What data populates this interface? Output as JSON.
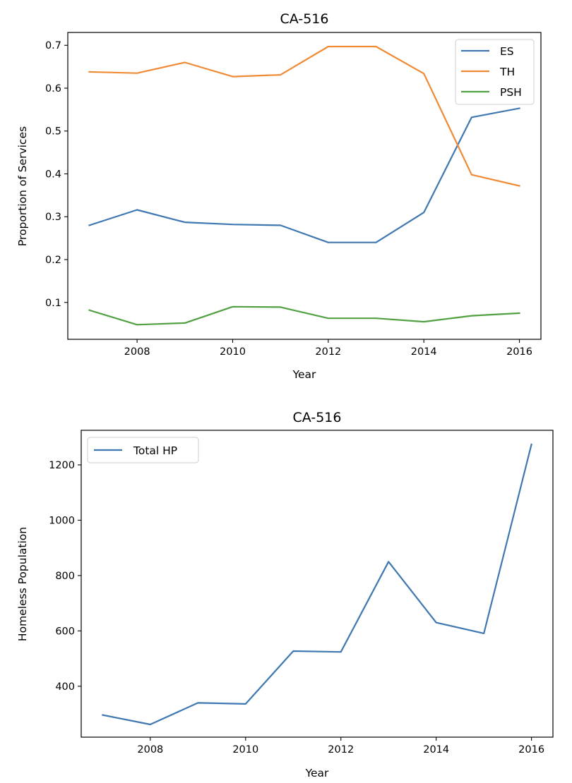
{
  "chart_data": [
    {
      "type": "line",
      "title": "CA-516",
      "xlabel": "Year",
      "ylabel": "Proportion of Services",
      "xlim": [
        2006.55,
        2016.45
      ],
      "ylim": [
        0.014,
        0.73
      ],
      "xticks": [
        2008,
        2010,
        2012,
        2014,
        2016
      ],
      "yticks": [
        0.1,
        0.2,
        0.3,
        0.4,
        0.5,
        0.6,
        0.7
      ],
      "ytick_labels": [
        "0.1",
        "0.2",
        "0.3",
        "0.4",
        "0.5",
        "0.6",
        "0.7"
      ],
      "legend_position": "top-right",
      "x": [
        2007,
        2008,
        2009,
        2010,
        2011,
        2012,
        2013,
        2014,
        2015,
        2016
      ],
      "series": [
        {
          "name": "ES",
          "color": "#3f78b0",
          "values": [
            0.28,
            0.316,
            0.287,
            0.282,
            0.28,
            0.24,
            0.24,
            0.31,
            0.532,
            0.553
          ]
        },
        {
          "name": "TH",
          "color": "#ef8a35",
          "values": [
            0.638,
            0.635,
            0.66,
            0.627,
            0.631,
            0.697,
            0.697,
            0.634,
            0.398,
            0.372
          ]
        },
        {
          "name": "PSH",
          "color": "#51a042",
          "values": [
            0.082,
            0.048,
            0.052,
            0.09,
            0.089,
            0.063,
            0.063,
            0.055,
            0.069,
            0.075
          ]
        }
      ]
    },
    {
      "type": "line",
      "title": "CA-516",
      "xlabel": "Year",
      "ylabel": "Homeless Population",
      "xlim": [
        2006.55,
        2016.45
      ],
      "ylim": [
        216,
        1325
      ],
      "xticks": [
        2008,
        2010,
        2012,
        2014,
        2016
      ],
      "yticks": [
        400,
        600,
        800,
        1000,
        1200
      ],
      "ytick_labels": [
        "400",
        "600",
        "800",
        "1000",
        "1200"
      ],
      "legend_position": "top-left",
      "x": [
        2007,
        2008,
        2009,
        2010,
        2011,
        2012,
        2013,
        2014,
        2015,
        2016
      ],
      "series": [
        {
          "name": "Total HP",
          "color": "#3f78b0",
          "values": [
            296,
            262,
            340,
            336,
            527,
            524,
            850,
            630,
            591,
            1274
          ]
        }
      ]
    }
  ]
}
